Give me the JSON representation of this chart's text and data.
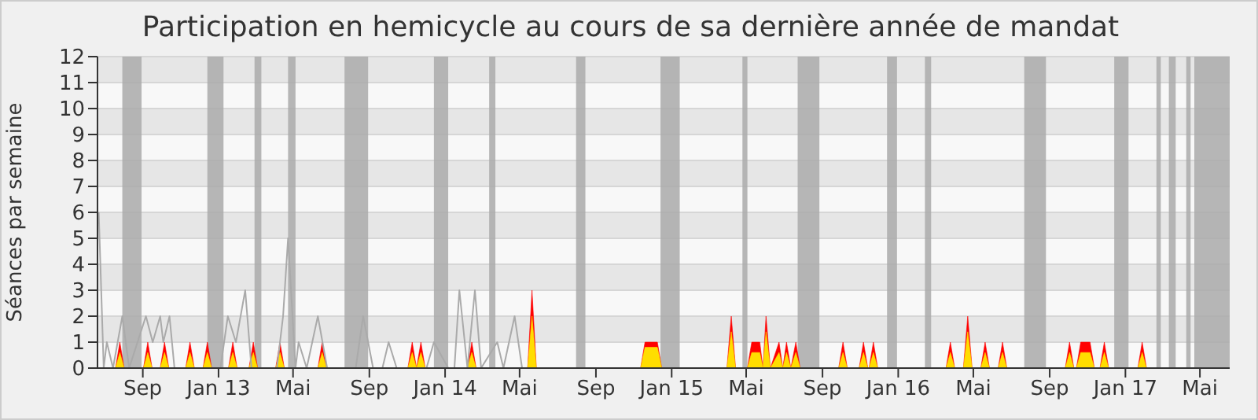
{
  "chart_data": {
    "type": "area",
    "title": "Participation en hemicycle au cours de sa dernière année de mandat",
    "ylabel": "Séances par semaine",
    "xlim": [
      "2012-06-20",
      "2017-06-18"
    ],
    "xticks": [
      {
        "value": "2012-09-01",
        "label": "Sep"
      },
      {
        "value": "2013-01-01",
        "label": "Jan 13"
      },
      {
        "value": "2013-05-01",
        "label": "Mai"
      },
      {
        "value": "2013-09-01",
        "label": "Sep"
      },
      {
        "value": "2014-01-01",
        "label": "Jan 14"
      },
      {
        "value": "2014-05-01",
        "label": "Mai"
      },
      {
        "value": "2014-09-01",
        "label": "Sep"
      },
      {
        "value": "2015-01-01",
        "label": "Jan 15"
      },
      {
        "value": "2015-05-01",
        "label": "Mai"
      },
      {
        "value": "2015-09-01",
        "label": "Sep"
      },
      {
        "value": "2016-01-01",
        "label": "Jan 16"
      },
      {
        "value": "2016-05-01",
        "label": "Mai"
      },
      {
        "value": "2016-09-01",
        "label": "Sep"
      },
      {
        "value": "2017-01-01",
        "label": "Jan 17"
      },
      {
        "value": "2017-05-01",
        "label": "Mai"
      }
    ],
    "ylim": [
      0,
      12
    ],
    "yticks": [
      0,
      1,
      2,
      3,
      4,
      5,
      6,
      7,
      8,
      9,
      10,
      11,
      12
    ],
    "grid": "y",
    "legend": false,
    "marker": "none",
    "line_style": "solid",
    "bands": [
      {
        "axis": "x",
        "from": "2012-07-30",
        "to": "2012-08-30",
        "color": "#aaaaaa"
      },
      {
        "axis": "x",
        "from": "2012-12-14",
        "to": "2013-01-09",
        "color": "#aaaaaa"
      },
      {
        "axis": "x",
        "from": "2013-02-28",
        "to": "2013-03-11",
        "color": "#aaaaaa"
      },
      {
        "axis": "x",
        "from": "2013-04-23",
        "to": "2013-05-05",
        "color": "#aaaaaa"
      },
      {
        "axis": "x",
        "from": "2013-07-23",
        "to": "2013-08-30",
        "color": "#aaaaaa"
      },
      {
        "axis": "x",
        "from": "2013-12-14",
        "to": "2014-01-06",
        "color": "#aaaaaa"
      },
      {
        "axis": "x",
        "from": "2014-03-13",
        "to": "2014-03-23",
        "color": "#aaaaaa"
      },
      {
        "axis": "x",
        "from": "2014-07-31",
        "to": "2014-08-15",
        "color": "#aaaaaa"
      },
      {
        "axis": "x",
        "from": "2014-12-14",
        "to": "2015-01-14",
        "color": "#aaaaaa"
      },
      {
        "axis": "x",
        "from": "2015-04-25",
        "to": "2015-05-03",
        "color": "#aaaaaa"
      },
      {
        "axis": "x",
        "from": "2015-07-23",
        "to": "2015-08-27",
        "color": "#aaaaaa"
      },
      {
        "axis": "x",
        "from": "2015-12-14",
        "to": "2015-12-30",
        "color": "#aaaaaa"
      },
      {
        "axis": "x",
        "from": "2016-02-13",
        "to": "2016-02-23",
        "color": "#aaaaaa"
      },
      {
        "axis": "x",
        "from": "2016-07-22",
        "to": "2016-08-26",
        "color": "#aaaaaa"
      },
      {
        "axis": "x",
        "from": "2016-12-14",
        "to": "2017-01-06",
        "color": "#aaaaaa"
      },
      {
        "axis": "x",
        "from": "2017-02-20",
        "to": "2017-02-27",
        "color": "#aaaaaa"
      },
      {
        "axis": "x",
        "from": "2017-03-12",
        "to": "2017-03-23",
        "color": "#aaaaaa"
      },
      {
        "axis": "x",
        "from": "2017-04-09",
        "to": "2017-04-16",
        "color": "#aaaaaa"
      },
      {
        "axis": "x",
        "from": "2017-04-22",
        "to": "2017-06-18",
        "color": "#aaaaaa"
      }
    ],
    "series": [
      {
        "type": "line",
        "color": "#aaaaaa",
        "x": [
          "2012-06-22",
          "2012-06-30",
          "2012-07-05",
          "2012-07-15",
          "2012-07-30",
          "2012-08-10",
          "2012-09-06",
          "2012-09-17",
          "2012-09-29",
          "2012-10-04",
          "2012-10-14",
          "2012-10-22",
          "2013-01-04",
          "2013-01-16",
          "2013-01-29",
          "2013-02-13",
          "2013-02-23",
          "2013-04-05",
          "2013-04-15",
          "2013-04-23",
          "2013-05-05",
          "2013-05-10",
          "2013-05-23",
          "2013-06-10",
          "2013-06-25",
          "2013-08-10",
          "2013-08-22",
          "2013-09-07",
          "2013-09-22",
          "2013-10-02",
          "2013-10-15",
          "2013-12-02",
          "2013-12-14",
          "2014-01-06",
          "2014-01-16",
          "2014-01-24",
          "2014-02-06",
          "2014-02-18",
          "2014-02-28",
          "2014-03-26",
          "2014-04-05",
          "2014-04-23",
          "2014-05-05",
          "2017-06-18"
        ],
        "values": [
          6,
          0,
          1,
          0,
          2,
          0,
          2,
          1,
          2,
          1,
          2,
          0,
          0,
          2,
          1,
          3,
          0,
          0,
          2,
          5,
          0,
          1,
          0,
          2,
          0,
          0,
          2,
          0,
          0,
          1,
          0,
          0,
          1,
          0,
          0,
          3,
          0,
          3,
          0,
          1,
          0,
          2,
          0,
          0
        ]
      },
      {
        "type": "area",
        "color": "#ff0000",
        "x": [
          "2012-06-20",
          "2012-07-19",
          "2012-07-26",
          "2012-08-02",
          "2012-09-02",
          "2012-09-09",
          "2012-09-16",
          "2012-09-29",
          "2012-10-06",
          "2012-10-13",
          "2012-11-09",
          "2012-11-16",
          "2012-11-23",
          "2012-12-07",
          "2012-12-14",
          "2012-12-21",
          "2013-01-17",
          "2013-01-24",
          "2013-01-31",
          "2013-02-19",
          "2013-02-26",
          "2013-03-05",
          "2013-04-03",
          "2013-04-10",
          "2013-04-17",
          "2013-06-10",
          "2013-06-17",
          "2013-06-24",
          "2013-11-02",
          "2013-11-09",
          "2013-11-16",
          "2013-11-23",
          "2013-11-30",
          "2014-02-06",
          "2014-02-13",
          "2014-02-20",
          "2014-05-14",
          "2014-05-21",
          "2014-05-28",
          "2014-11-12",
          "2014-11-19",
          "2014-12-09",
          "2014-12-16",
          "2015-03-31",
          "2015-04-07",
          "2015-04-14",
          "2015-05-03",
          "2015-05-10",
          "2015-05-23",
          "2015-05-28",
          "2015-06-02",
          "2015-06-09",
          "2015-06-23",
          "2015-06-29",
          "2015-07-05",
          "2015-07-12",
          "2015-07-20",
          "2015-07-27",
          "2015-09-27",
          "2015-10-04",
          "2015-10-11",
          "2015-10-30",
          "2015-11-06",
          "2015-11-13",
          "2015-11-15",
          "2015-11-22",
          "2015-11-29",
          "2016-03-18",
          "2016-03-25",
          "2016-04-01",
          "2016-04-15",
          "2016-04-22",
          "2016-04-29",
          "2016-05-13",
          "2016-05-20",
          "2016-05-27",
          "2016-06-10",
          "2016-06-17",
          "2016-06-24",
          "2016-09-26",
          "2016-10-03",
          "2016-10-10",
          "2016-10-14",
          "2016-10-21",
          "2016-11-05",
          "2016-11-12",
          "2016-11-21",
          "2016-11-28",
          "2016-12-05",
          "2017-01-21",
          "2017-01-28",
          "2017-02-04",
          "2017-06-18"
        ],
        "values": [
          0,
          0,
          1,
          0,
          0,
          1,
          0,
          0,
          1,
          0,
          0,
          1,
          0,
          0,
          1,
          0,
          0,
          1,
          0,
          0,
          1,
          0,
          0,
          1,
          0,
          0,
          1,
          0,
          0,
          1,
          0,
          1,
          0,
          0,
          1,
          0,
          0,
          3,
          0,
          0,
          1,
          1,
          0,
          0,
          2,
          0,
          0,
          1,
          1,
          0,
          2,
          0,
          1,
          0,
          1,
          0,
          1,
          0,
          0,
          1,
          0,
          0,
          1,
          0,
          0,
          1,
          0,
          0,
          1,
          0,
          0,
          2,
          0,
          0,
          1,
          0,
          0,
          1,
          0,
          0,
          1,
          0,
          0,
          1,
          1,
          0,
          0,
          1,
          0,
          0,
          1,
          0,
          0
        ]
      },
      {
        "type": "area",
        "color": "#ffdd00",
        "x": [
          "2012-06-20",
          "2012-07-19",
          "2012-07-26",
          "2012-08-02",
          "2012-09-02",
          "2012-09-09",
          "2012-09-16",
          "2012-09-29",
          "2012-10-06",
          "2012-10-13",
          "2012-11-09",
          "2012-11-16",
          "2012-11-23",
          "2012-12-07",
          "2012-12-14",
          "2012-12-21",
          "2013-01-17",
          "2013-01-24",
          "2013-01-31",
          "2013-02-19",
          "2013-02-26",
          "2013-03-05",
          "2013-04-03",
          "2013-04-10",
          "2013-04-17",
          "2013-06-10",
          "2013-06-17",
          "2013-06-24",
          "2013-11-02",
          "2013-11-09",
          "2013-11-16",
          "2013-11-23",
          "2013-11-30",
          "2014-02-06",
          "2014-02-13",
          "2014-02-20",
          "2014-05-14",
          "2014-05-21",
          "2014-05-28",
          "2014-11-12",
          "2014-11-19",
          "2014-12-09",
          "2014-12-16",
          "2015-03-31",
          "2015-04-07",
          "2015-04-14",
          "2015-05-03",
          "2015-05-10",
          "2015-05-23",
          "2015-05-28",
          "2015-06-02",
          "2015-06-09",
          "2015-06-23",
          "2015-06-29",
          "2015-07-05",
          "2015-07-12",
          "2015-07-20",
          "2015-07-27",
          "2015-09-27",
          "2015-10-04",
          "2015-10-11",
          "2015-10-30",
          "2015-11-06",
          "2015-11-13",
          "2015-11-15",
          "2015-11-22",
          "2015-11-29",
          "2016-03-18",
          "2016-03-25",
          "2016-04-01",
          "2016-04-15",
          "2016-04-22",
          "2016-04-29",
          "2016-05-13",
          "2016-05-20",
          "2016-05-27",
          "2016-06-10",
          "2016-06-17",
          "2016-06-24",
          "2016-09-26",
          "2016-10-03",
          "2016-10-10",
          "2016-10-14",
          "2016-10-21",
          "2016-11-05",
          "2016-11-12",
          "2016-11-21",
          "2016-11-28",
          "2016-12-05",
          "2017-01-21",
          "2017-01-28",
          "2017-02-04",
          "2017-06-18"
        ],
        "values": [
          0,
          0,
          0.6,
          0,
          0,
          0.6,
          0,
          0,
          0.6,
          0,
          0,
          0.6,
          0,
          0,
          0.6,
          0,
          0,
          0.6,
          0,
          0,
          0.6,
          0,
          0,
          0.6,
          0,
          0,
          0.6,
          0,
          0,
          0.6,
          0,
          0.6,
          0,
          0,
          0.6,
          0,
          0,
          2,
          0,
          0,
          0.8,
          0.8,
          0,
          0,
          1.4,
          0,
          0,
          0.6,
          0.6,
          0,
          1.4,
          0,
          0.6,
          0,
          0.6,
          0,
          0.6,
          0,
          0,
          0.6,
          0,
          0,
          0.6,
          0,
          0,
          0.6,
          0,
          0,
          0.6,
          0,
          0,
          1.4,
          0,
          0,
          0.6,
          0,
          0,
          0.6,
          0,
          0,
          0.6,
          0,
          0,
          0.6,
          0.6,
          0,
          0,
          0.6,
          0,
          0,
          0.6,
          0,
          0
        ]
      }
    ]
  }
}
